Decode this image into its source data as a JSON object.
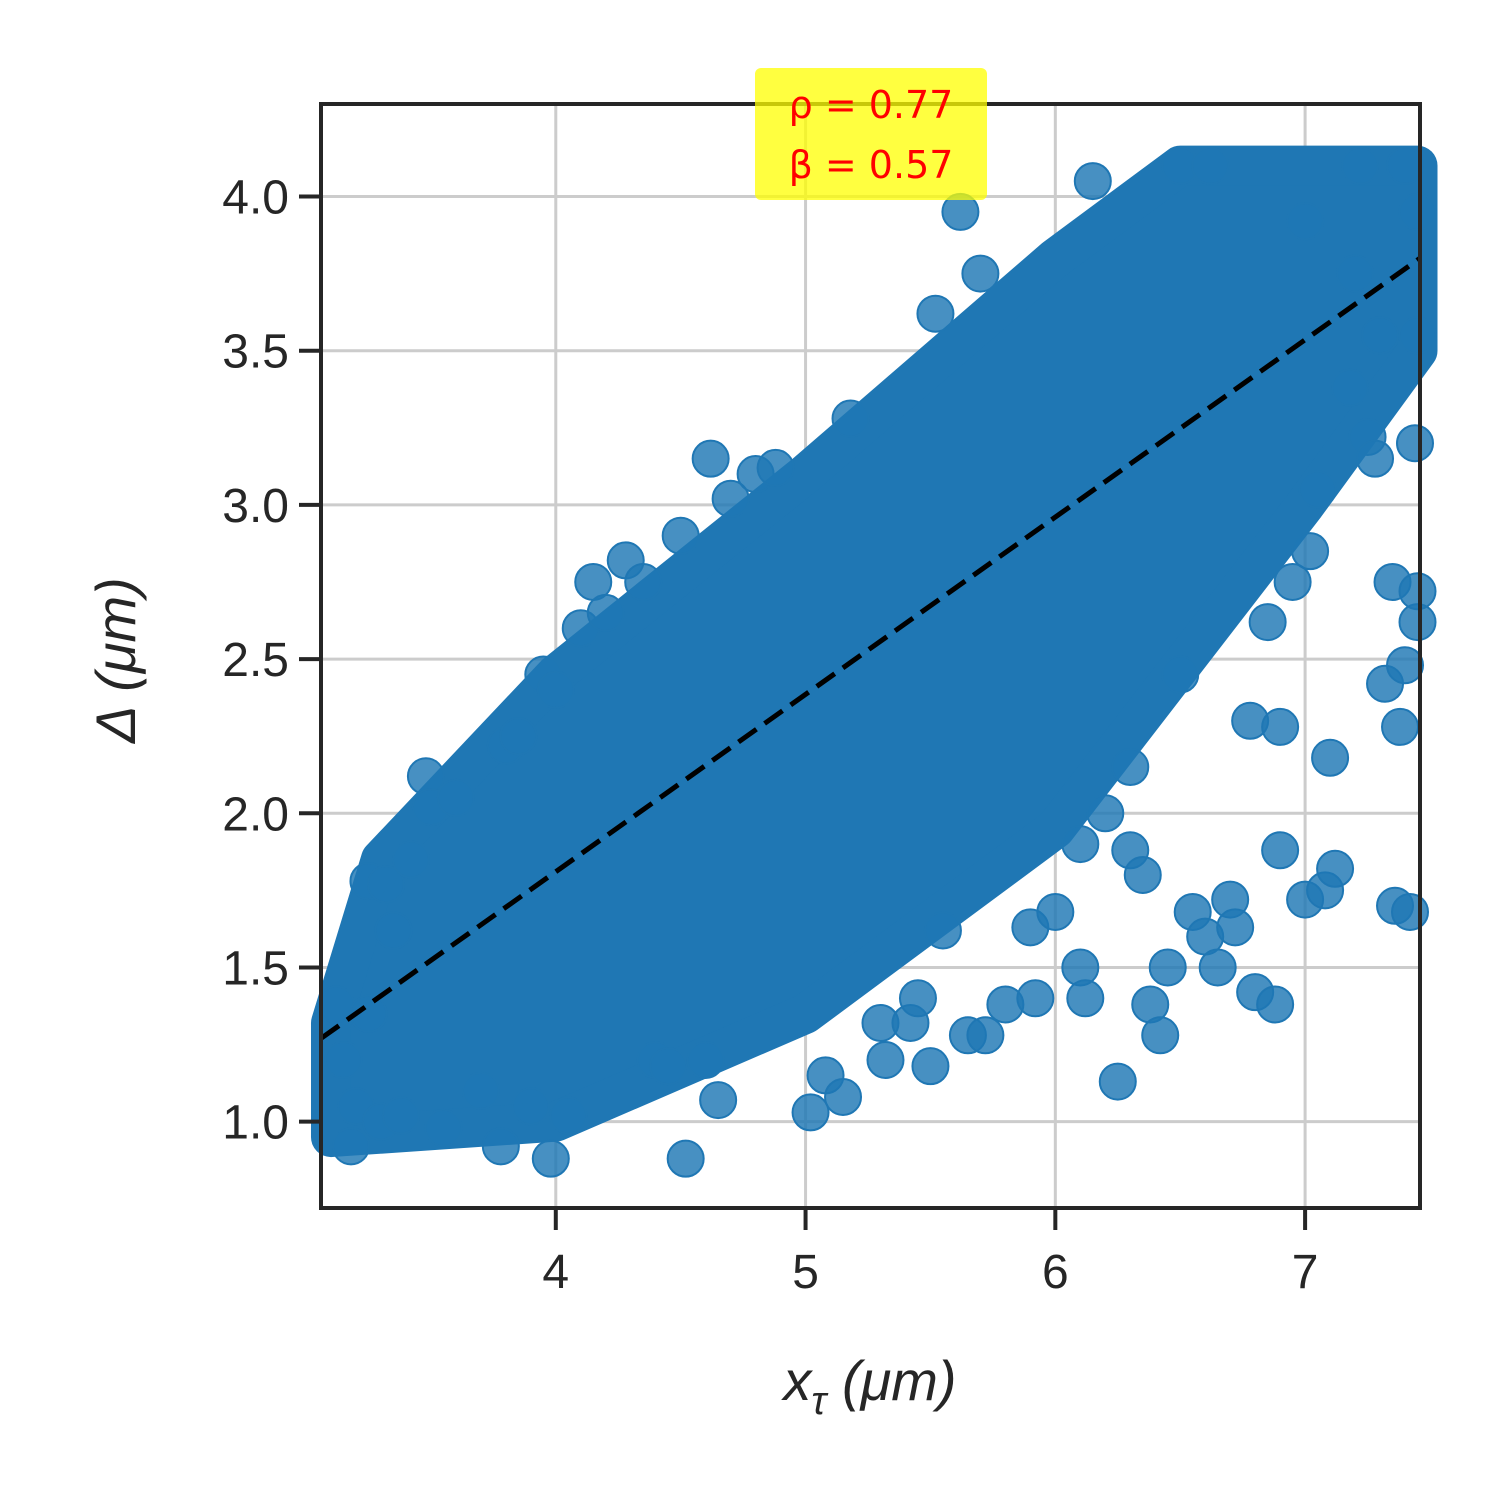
{
  "chart_data": {
    "type": "scatter",
    "title": "",
    "xlabel": "xτ (μm)",
    "xlabel_parts": {
      "main": "x",
      "sub": "τ",
      "unit": " (μm)"
    },
    "ylabel": "Δ (μm)",
    "xlim": [
      3.06,
      7.46
    ],
    "ylim": [
      0.72,
      4.3
    ],
    "xticks": [
      4,
      5,
      6,
      7
    ],
    "yticks": [
      1.0,
      1.5,
      2.0,
      2.5,
      3.0,
      3.5,
      4.0
    ],
    "grid": true,
    "point_color": "#1f77b4",
    "fit_line": {
      "style": "dashed",
      "color": "#000000",
      "x": [
        3.06,
        7.46
      ],
      "y": [
        1.27,
        3.8
      ]
    },
    "annotation": {
      "lines": [
        "ρ = 0.77",
        "β = 0.57"
      ],
      "color": "#ff0000",
      "background": "#ffff00",
      "placement": "top-center"
    },
    "series": [
      {
        "points": [
          [
            3.12,
            1.38
          ],
          [
            3.15,
            1.2
          ],
          [
            3.18,
            0.92
          ],
          [
            3.2,
            1.05
          ],
          [
            3.25,
            1.35
          ],
          [
            3.25,
            1.78
          ],
          [
            3.3,
            1.0
          ],
          [
            3.32,
            1.77
          ],
          [
            3.35,
            1.62
          ],
          [
            3.38,
            1.02
          ],
          [
            3.42,
            1.85
          ],
          [
            3.48,
            2.12
          ],
          [
            3.5,
            2.02
          ],
          [
            3.55,
            0.98
          ],
          [
            3.6,
            2.05
          ],
          [
            3.7,
            1.1
          ],
          [
            3.78,
            0.92
          ],
          [
            3.8,
            2.22
          ],
          [
            3.85,
            2.25
          ],
          [
            3.9,
            1.05
          ],
          [
            3.95,
            2.45
          ],
          [
            3.98,
            0.88
          ],
          [
            4.0,
            2.4
          ],
          [
            4.05,
            1.02
          ],
          [
            4.1,
            2.6
          ],
          [
            4.15,
            2.75
          ],
          [
            4.2,
            2.65
          ],
          [
            4.28,
            2.82
          ],
          [
            4.35,
            2.75
          ],
          [
            4.4,
            1.2
          ],
          [
            4.45,
            1.18
          ],
          [
            4.5,
            2.9
          ],
          [
            4.52,
            0.88
          ],
          [
            4.6,
            1.2
          ],
          [
            4.62,
            3.15
          ],
          [
            4.65,
            1.07
          ],
          [
            4.7,
            3.02
          ],
          [
            4.8,
            3.1
          ],
          [
            4.88,
            3.12
          ],
          [
            5.02,
            1.03
          ],
          [
            5.08,
            1.15
          ],
          [
            5.15,
            1.08
          ],
          [
            5.18,
            3.28
          ],
          [
            5.3,
            1.32
          ],
          [
            5.32,
            1.2
          ],
          [
            5.42,
            1.32
          ],
          [
            5.45,
            1.4
          ],
          [
            5.5,
            1.18
          ],
          [
            5.52,
            3.62
          ],
          [
            5.62,
            3.95
          ],
          [
            5.65,
            1.28
          ],
          [
            5.7,
            3.75
          ],
          [
            5.72,
            1.28
          ],
          [
            5.8,
            1.38
          ],
          [
            5.9,
            1.63
          ],
          [
            5.92,
            1.4
          ],
          [
            6.0,
            1.68
          ],
          [
            6.1,
            1.5
          ],
          [
            6.12,
            1.4
          ],
          [
            6.15,
            4.05
          ],
          [
            6.25,
            1.13
          ],
          [
            6.3,
            1.88
          ],
          [
            6.35,
            1.8
          ],
          [
            6.38,
            1.38
          ],
          [
            6.42,
            1.28
          ],
          [
            6.45,
            1.5
          ],
          [
            6.5,
            4.1
          ],
          [
            6.55,
            1.68
          ],
          [
            6.6,
            1.6
          ],
          [
            6.62,
            4.1
          ],
          [
            6.65,
            1.5
          ],
          [
            6.7,
            1.72
          ],
          [
            6.72,
            1.63
          ],
          [
            6.78,
            2.3
          ],
          [
            6.8,
            1.42
          ],
          [
            6.85,
            2.62
          ],
          [
            6.88,
            1.38
          ],
          [
            6.9,
            1.88
          ],
          [
            6.9,
            2.28
          ],
          [
            6.95,
            2.75
          ],
          [
            7.0,
            1.72
          ],
          [
            7.02,
            2.85
          ],
          [
            7.05,
            3.05
          ],
          [
            7.08,
            1.75
          ],
          [
            7.1,
            2.18
          ],
          [
            7.12,
            1.82
          ],
          [
            7.18,
            3.38
          ],
          [
            7.22,
            4.1
          ],
          [
            7.25,
            3.22
          ],
          [
            7.28,
            3.15
          ],
          [
            7.3,
            3.55
          ],
          [
            7.32,
            2.42
          ],
          [
            7.35,
            2.75
          ],
          [
            7.36,
            1.7
          ],
          [
            7.38,
            2.28
          ],
          [
            7.4,
            2.48
          ],
          [
            7.42,
            1.68
          ],
          [
            7.44,
            3.2
          ],
          [
            7.45,
            2.62
          ],
          [
            7.45,
            2.72
          ],
          [
            7.45,
            3.55
          ],
          [
            7.45,
            3.95
          ],
          [
            7.4,
            4.1
          ],
          [
            7.2,
            3.75
          ],
          [
            7.0,
            3.92
          ],
          [
            6.2,
            2.0
          ],
          [
            6.3,
            2.15
          ],
          [
            6.5,
            2.45
          ],
          [
            6.1,
            1.9
          ],
          [
            5.55,
            1.62
          ]
        ]
      }
    ]
  }
}
